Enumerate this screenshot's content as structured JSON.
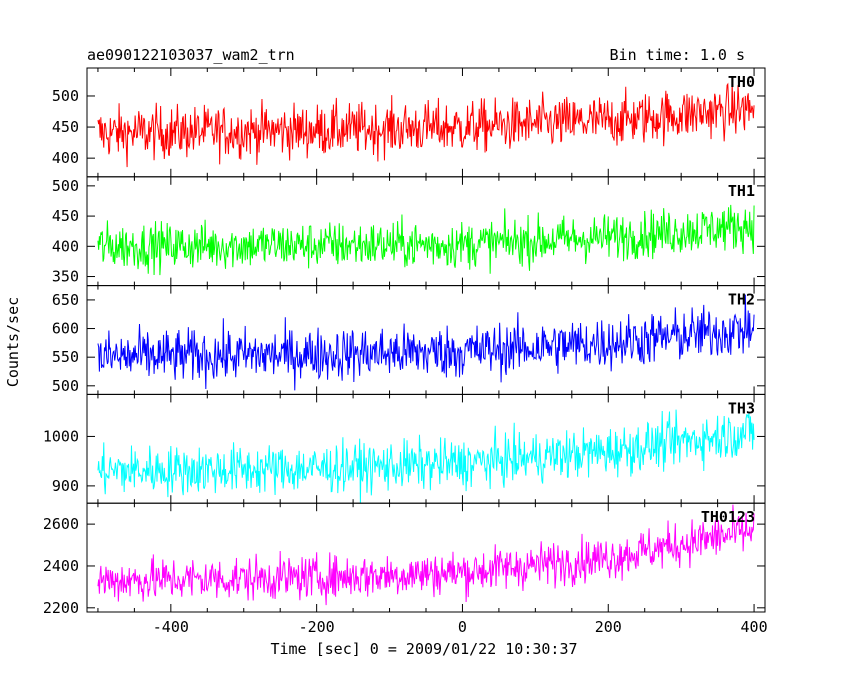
{
  "header": {
    "title": "ae090122103037_wam2_trn",
    "bin_time": "Bin time: 1.0 s"
  },
  "axes": {
    "ylabel": "Counts/sec",
    "xlabel": "Time [sec] 0 = 2009/01/22 10:30:37"
  },
  "chart_data": {
    "type": "line",
    "x_range": [
      -500,
      400
    ],
    "x_lim": [
      -515,
      415
    ],
    "x_ticks": [
      -400,
      -200,
      0,
      200,
      400
    ],
    "x_tick_labels": [
      "-400",
      "-200",
      "0",
      "200",
      "400"
    ],
    "grid": false,
    "series": [
      {
        "name": "TH0",
        "color": "#ff0000",
        "ylim": [
          370,
          545
        ],
        "yticks": [
          400,
          450,
          500
        ],
        "trend": [
          [
            -500,
            440
          ],
          [
            -200,
            445
          ],
          [
            0,
            450
          ],
          [
            200,
            460
          ],
          [
            400,
            480
          ]
        ],
        "noise_amplitude": 38
      },
      {
        "name": "TH1",
        "color": "#00ff00",
        "ylim": [
          335,
          515
        ],
        "yticks": [
          350,
          400,
          450,
          500
        ],
        "trend": [
          [
            -500,
            400
          ],
          [
            -200,
            402
          ],
          [
            0,
            403
          ],
          [
            200,
            415
          ],
          [
            400,
            435
          ]
        ],
        "noise_amplitude": 35
      },
      {
        "name": "TH2",
        "color": "#0000ff",
        "ylim": [
          485,
          675
        ],
        "yticks": [
          500,
          550,
          600,
          650
        ],
        "trend": [
          [
            -500,
            550
          ],
          [
            -200,
            555
          ],
          [
            0,
            560
          ],
          [
            200,
            575
          ],
          [
            400,
            600
          ]
        ],
        "noise_amplitude": 42
      },
      {
        "name": "TH3",
        "color": "#00ffff",
        "ylim": [
          865,
          1085
        ],
        "yticks": [
          900,
          1000
        ],
        "trend": [
          [
            -500,
            930
          ],
          [
            -200,
            935
          ],
          [
            0,
            945
          ],
          [
            200,
            970
          ],
          [
            400,
            1010
          ]
        ],
        "noise_amplitude": 45
      },
      {
        "name": "TH0123",
        "color": "#ff00ff",
        "ylim": [
          2180,
          2700
        ],
        "yticks": [
          2200,
          2400,
          2600
        ],
        "trend": [
          [
            -500,
            2330
          ],
          [
            -200,
            2345
          ],
          [
            0,
            2370
          ],
          [
            200,
            2440
          ],
          [
            400,
            2570
          ]
        ],
        "noise_amplitude": 95
      }
    ]
  }
}
